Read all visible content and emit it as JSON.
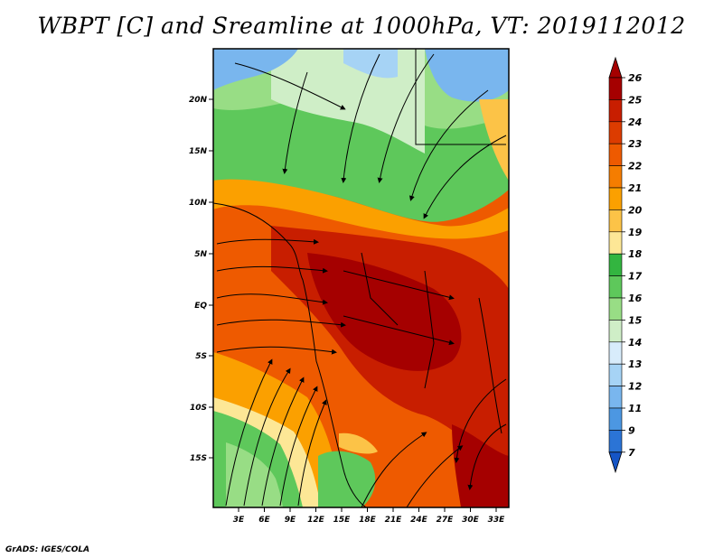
{
  "title": "WBPT [C] and Sreamline at 1000hPa, VT: 2019112012",
  "footer": "GrADS: IGES/COLA",
  "map": {
    "lat_labels": [
      "20N",
      "15N",
      "10N",
      "5N",
      "EQ",
      "5S",
      "10S",
      "15S"
    ],
    "lon_labels": [
      "3E",
      "6E",
      "9E",
      "12E",
      "15E",
      "18E",
      "21E",
      "24E",
      "27E",
      "30E",
      "33E"
    ]
  },
  "colorbar": {
    "levels": [
      "26",
      "25",
      "24",
      "23",
      "22",
      "21",
      "20",
      "19",
      "18",
      "17",
      "16",
      "15",
      "14",
      "13",
      "12",
      "11",
      "9",
      "7"
    ],
    "colors": [
      "#a50000",
      "#c81e00",
      "#dc3c00",
      "#ee5a00",
      "#f57d00",
      "#fba000",
      "#fcc347",
      "#fde796",
      "#33b540",
      "#5ec85b",
      "#98dd85",
      "#cfeec7",
      "#d8ecfb",
      "#a6d3f5",
      "#79b6ee",
      "#4c97e2",
      "#2b74d6",
      "#1555c6"
    ]
  }
}
